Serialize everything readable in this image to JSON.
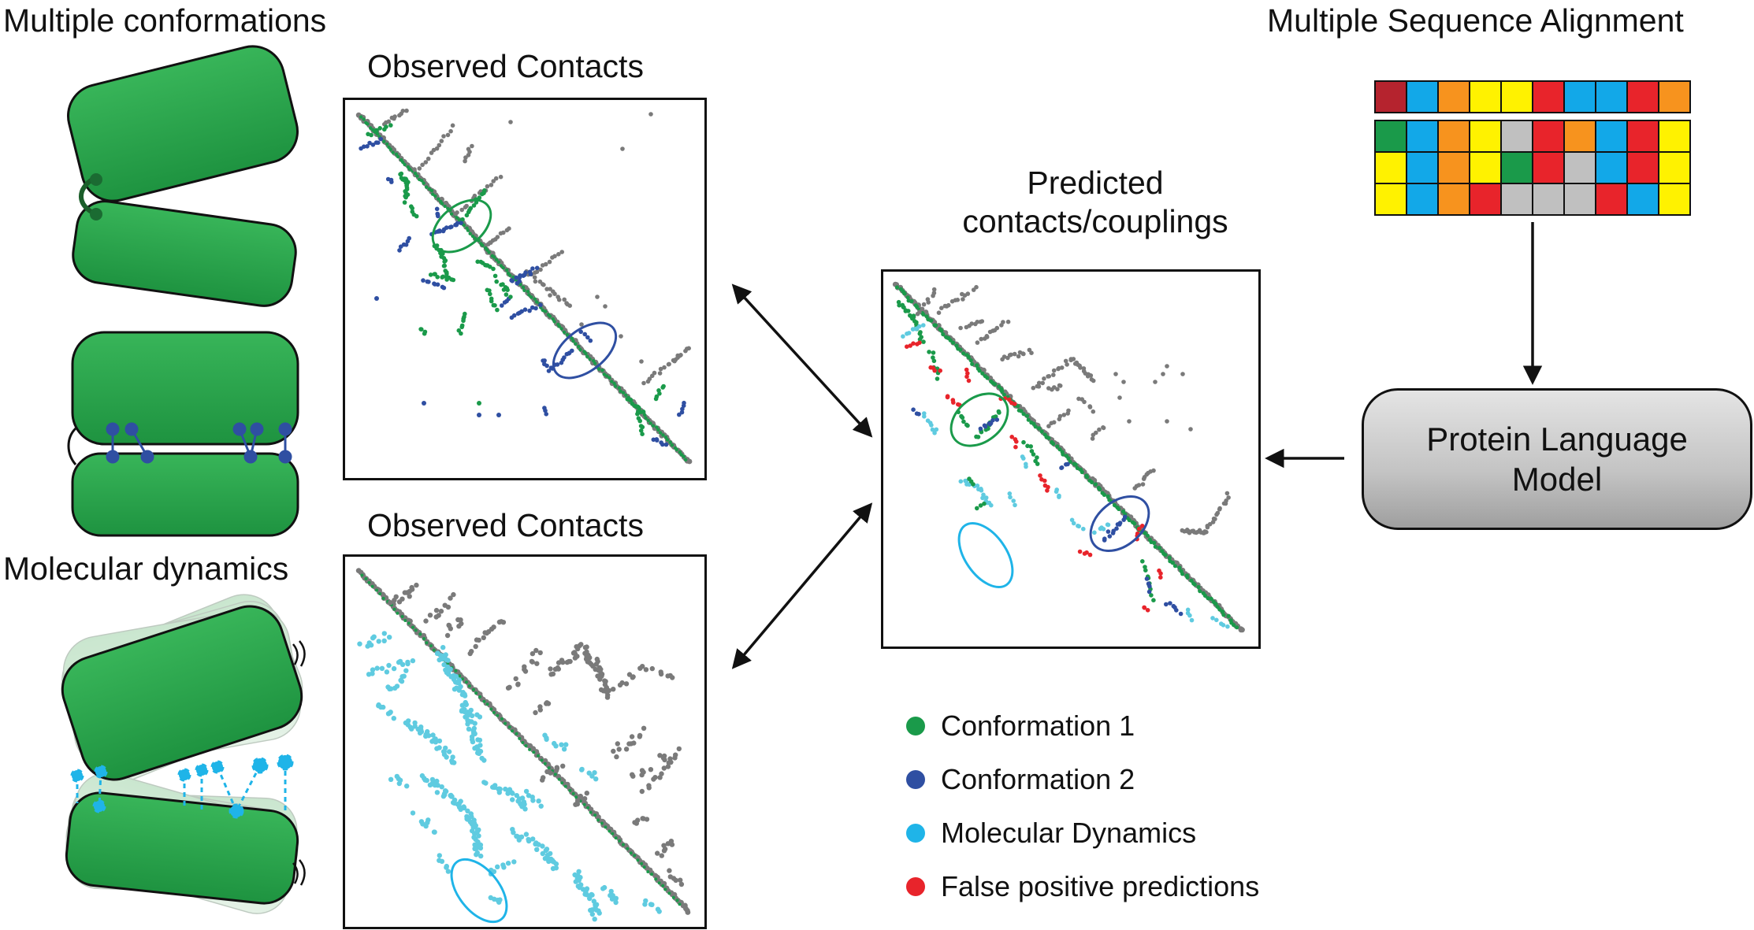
{
  "titles": {
    "multiple_conformations": "Multiple conformations",
    "observed_contacts_top": "Observed Contacts",
    "observed_contacts_bottom": "Observed Contacts",
    "predicted": "Predicted\ncontacts/couplings",
    "msa": "Multiple Sequence Alignment",
    "molecular_dynamics": "Molecular dynamics"
  },
  "model_box": {
    "label": "Protein Language\nModel"
  },
  "legend": [
    {
      "label": "Conformation 1",
      "color": "#1a9a4a"
    },
    {
      "label": "Conformation 2",
      "color": "#2f4fa2"
    },
    {
      "label": "Molecular Dynamics",
      "color": "#1fb4e8"
    },
    {
      "label": "False positive predictions",
      "color": "#e8242b"
    }
  ],
  "msa_grid": [
    [
      "#b5232e",
      "#12a8e8",
      "#f7931e",
      "#fff200",
      "#fff200",
      "#e8242b",
      "#12a8e8",
      "#12a8e8",
      "#e8242b",
      "#f7931e"
    ],
    [
      "#1a9a4a",
      "#12a8e8",
      "#f7931e",
      "#fff200",
      "#c0c0c0",
      "#e8242b",
      "#f7931e",
      "#12a8e8",
      "#e8242b",
      "#fff200"
    ],
    [
      "#fff200",
      "#12a8e8",
      "#f7931e",
      "#fff200",
      "#1a9a4a",
      "#e8242b",
      "#c0c0c0",
      "#12a8e8",
      "#e8242b",
      "#fff200"
    ],
    [
      "#fff200",
      "#12a8e8",
      "#f7931e",
      "#e8242b",
      "#c0c0c0",
      "#c0c0c0",
      "#c0c0c0",
      "#e8242b",
      "#12a8e8",
      "#fff200"
    ]
  ],
  "colors": {
    "protein_green": "#2aa84a",
    "gray_dots": "#7a7a7a",
    "conformation1": "#1a9a4a",
    "conformation2": "#2f4fa2",
    "md_cyan": "#5fcbe0",
    "md_link": "#1fb4e8",
    "false_positive": "#e8242b"
  }
}
